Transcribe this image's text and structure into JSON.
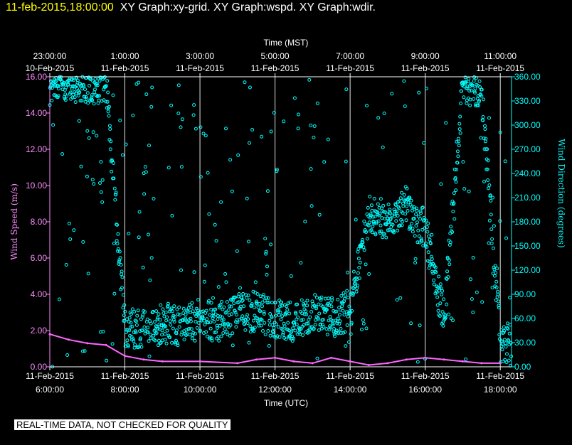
{
  "header": {
    "timestamp": "11-feb-2015,18:00:00",
    "graphs": "XY Graph:xy-grid.  XY Graph:wspd.  XY Graph:wdir."
  },
  "disclaimer": "REAL-TIME DATA, NOT CHECKED FOR QUALITY",
  "colors": {
    "wspd": "#ff66ff",
    "wdir": "#00ffff",
    "grid": "#ffffff",
    "left_axis": "#ff8cff",
    "right_axis": "#00ffff"
  },
  "chart_data": {
    "type": "scatter",
    "title": "",
    "x_top_label": "Time (MST)",
    "x_bottom_label": "Time (UTC)",
    "y_left_label": "Wind Speed (m/s)",
    "y_right_label": "Wind Direction (degrees)",
    "xlim_utc_hours": [
      6,
      18.3
    ],
    "ylim_left": [
      0,
      16
    ],
    "ylim_right": [
      0,
      360
    ],
    "grid": "vertical lines at bottom axis ticks",
    "x_top_ticks": [
      {
        "utc": 6,
        "time": "23:00:00",
        "date": "10-Feb-2015"
      },
      {
        "utc": 8,
        "time": "1:00:00",
        "date": "11-Feb-2015"
      },
      {
        "utc": 10,
        "time": "3:00:00",
        "date": "11-Feb-2015"
      },
      {
        "utc": 12,
        "time": "5:00:00",
        "date": "11-Feb-2015"
      },
      {
        "utc": 14,
        "time": "7:00:00",
        "date": "11-Feb-2015"
      },
      {
        "utc": 16,
        "time": "9:00:00",
        "date": "11-Feb-2015"
      },
      {
        "utc": 18,
        "time": "11:00:00",
        "date": "11-Feb-2015"
      }
    ],
    "x_bottom_ticks": [
      {
        "utc": 6,
        "date": "11-Feb-2015",
        "time": "6:00:00"
      },
      {
        "utc": 8,
        "date": "11-Feb-2015",
        "time": "8:00:00"
      },
      {
        "utc": 10,
        "date": "11-Feb-2015",
        "time": "10:00:00"
      },
      {
        "utc": 12,
        "date": "11-Feb-2015",
        "time": "12:00:00"
      },
      {
        "utc": 14,
        "date": "11-Feb-2015",
        "time": "14:00:00"
      },
      {
        "utc": 16,
        "date": "11-Feb-2015",
        "time": "16:00:00"
      },
      {
        "utc": 18,
        "date": "11-Feb-2015",
        "time": "18:00:00"
      }
    ],
    "y_left_ticks": [
      "0.00",
      "2.00",
      "4.00",
      "6.00",
      "8.00",
      "10.00",
      "12.00",
      "14.00",
      "16.00"
    ],
    "y_right_ticks": [
      "0.00",
      "30.00",
      "60.00",
      "90.00",
      "120.00",
      "150.00",
      "180.00",
      "210.00",
      "240.00",
      "270.00",
      "300.00",
      "330.00",
      "360.00"
    ],
    "series": [
      {
        "name": "wspd",
        "axis": "left",
        "x": [
          6.0,
          6.5,
          7.0,
          7.5,
          8.0,
          8.5,
          9.0,
          10.0,
          11.0,
          11.5,
          12.0,
          12.5,
          13.0,
          13.5,
          14.0,
          14.5,
          15.0,
          15.5,
          16.0,
          16.5,
          17.0,
          17.5,
          18.0
        ],
        "values": [
          1.8,
          1.5,
          1.3,
          1.2,
          0.6,
          0.4,
          0.3,
          0.3,
          0.2,
          0.4,
          0.5,
          0.3,
          0.2,
          0.5,
          0.3,
          0.1,
          0.2,
          0.4,
          0.5,
          0.4,
          0.3,
          0.2,
          0.2
        ]
      },
      {
        "name": "wdir",
        "axis": "right",
        "x": [
          6.0,
          6.5,
          7.0,
          7.5,
          8.0,
          8.5,
          9.0,
          9.5,
          10.0,
          10.5,
          11.0,
          11.5,
          12.0,
          12.5,
          13.0,
          13.5,
          14.0,
          14.5,
          15.0,
          15.5,
          16.0,
          16.5,
          17.0,
          17.5,
          18.0
        ],
        "values": [
          350,
          355,
          350,
          352,
          50,
          45,
          55,
          50,
          60,
          55,
          65,
          70,
          60,
          55,
          65,
          60,
          70,
          190,
          180,
          200,
          170,
          60,
          350,
          345,
          30
        ]
      }
    ]
  }
}
